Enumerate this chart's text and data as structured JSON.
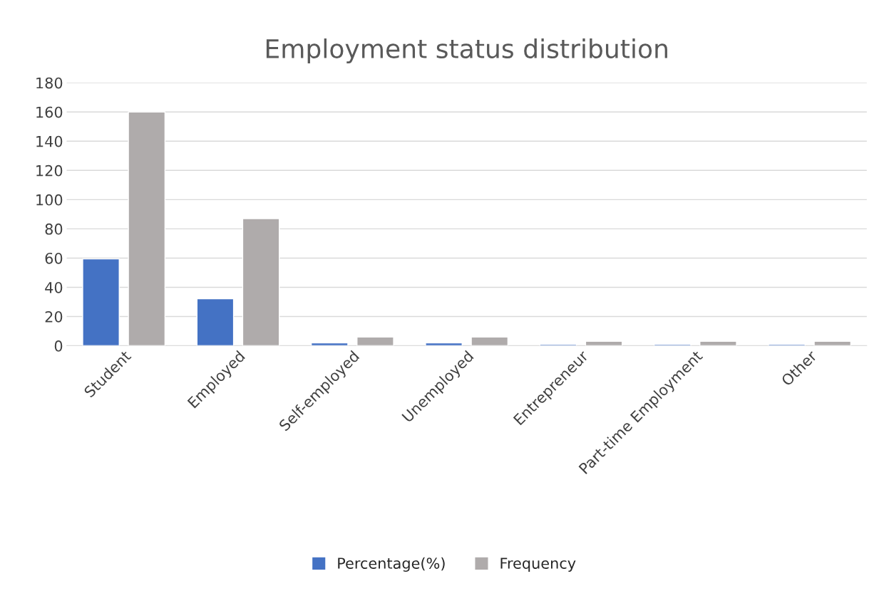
{
  "chart_data": {
    "type": "bar",
    "title": "Employment status distribution",
    "categories": [
      "Student",
      "Employed",
      "Self-employed",
      "Unemployed",
      "Entrepreneur",
      "Part-time Employment",
      "Other"
    ],
    "series": [
      {
        "name": "Percentage(%)",
        "color": "#4472c4",
        "values": [
          59.5,
          32.2,
          2,
          2,
          1,
          1,
          1
        ]
      },
      {
        "name": "Frequency",
        "color": "#afabab",
        "values": [
          160,
          87,
          6,
          6,
          3,
          3,
          3
        ]
      }
    ],
    "ylim": [
      0,
      180
    ],
    "yticks": [
      0,
      20,
      40,
      60,
      80,
      100,
      120,
      140,
      160,
      180
    ],
    "grid": "y",
    "legend": "bottom"
  }
}
